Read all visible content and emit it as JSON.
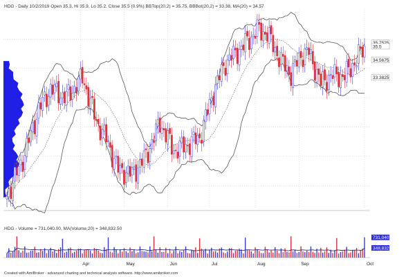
{
  "price_header": "HDG - Daily 10/2/2019 Open 35.3, Hi 35.9, Lo 35.2, Close 35.5 (0.9%) BBTop(20,2) = 35.75, BBBot(20,2) = 33.38, MA(20) = 34.57",
  "volume_header": "HDG - Volume = 731,040.00, MA(Volume,20) = 348,832.50",
  "footer": "Created with AmiBroker - advanced charting and technical analysis software. http://www.amibroker.com",
  "colors": {
    "up": "#3a3ad8",
    "down": "#e0303a",
    "band": "#555555",
    "ma": "#555555",
    "volume_ma": "#2a2a7a",
    "profile": "#1f1fe8",
    "grid": "#c8c8c8",
    "price_label_bg": "#ffffff",
    "volume_label_bg": "#2d2df0"
  },
  "chart_data": [
    {
      "type": "candlestick",
      "ticker": "HDG",
      "months": [
        "Apr",
        "May",
        "Jun",
        "Jul",
        "Aug",
        "Sep",
        "Oct"
      ],
      "price_labels": [
        {
          "label": "35.7525",
          "value": 35.7525
        },
        {
          "label": "35.5",
          "value": 35.5
        },
        {
          "label": "34.5675",
          "value": 34.5675
        },
        {
          "label": "33.3825",
          "value": 33.3825
        }
      ],
      "last_close": 35.5,
      "bollinger": {
        "period": 20,
        "std": 2,
        "top": 35.75,
        "bottom": 33.38,
        "ma": 34.57
      },
      "ylim": [
        24.5,
        38
      ],
      "grid": true,
      "volume_profile": true,
      "candles": []
    },
    {
      "type": "bar",
      "series_name": "Volume",
      "last_value_label": "731,040",
      "last_value": 731040,
      "ma_label": "348,832",
      "ma_value": 348832.5,
      "ylim": [
        0,
        900000
      ],
      "values": []
    }
  ]
}
